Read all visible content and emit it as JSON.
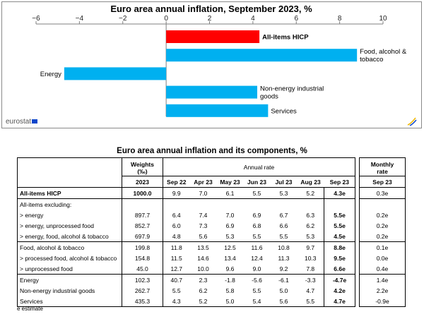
{
  "chart_data": {
    "type": "bar",
    "orientation": "horizontal",
    "title": "Euro area annual inflation, September 2023, %",
    "xlim": [
      -6,
      10
    ],
    "ticks": [
      -6,
      -4,
      -2,
      0,
      2,
      4,
      6,
      8,
      10
    ],
    "categories": [
      "All-items HICP",
      "Food, alcohol & tobacco",
      "Energy",
      "Non-energy industrial goods",
      "Services"
    ],
    "bar_labels": [
      "All-items HICP",
      "Food, alcohol &\ntobacco",
      "Energy",
      "Non-energy industrial\ngoods",
      "Services"
    ],
    "values": [
      4.3,
      8.8,
      -4.7,
      4.2,
      4.7
    ],
    "colors": [
      "#ff0000",
      "#00b0f0",
      "#00b0f0",
      "#00b0f0",
      "#00b0f0"
    ]
  },
  "source": "eurostat",
  "table": {
    "title": "Euro area annual inflation and its components, %",
    "weights_header": "Weights",
    "weights_unit": "(‰)",
    "annual_rate_header": "Annual rate",
    "monthly_header": "Monthly",
    "monthly_header2": "rate",
    "subheaders": [
      "2023",
      "Sep 22",
      "Apr 23",
      "May 23",
      "Jun 23",
      "Jul 23",
      "Aug 23",
      "Sep 23"
    ],
    "monthly_sub": "Sep 23",
    "rows": [
      {
        "label": "All-items HICP",
        "bold": true,
        "weight": "1000.0",
        "rates": [
          "9.9",
          "7.0",
          "6.1",
          "5.5",
          "5.3",
          "5.2",
          "4.3e"
        ],
        "monthly": "0.3e"
      },
      {
        "label": "All-items excluding:",
        "weight": "",
        "rates": [
          "",
          "",
          "",
          "",
          "",
          "",
          ""
        ],
        "monthly": ""
      },
      {
        "label": "> energy",
        "weight": "897.7",
        "rates": [
          "6.4",
          "7.4",
          "7.0",
          "6.9",
          "6.7",
          "6.3",
          "5.5e"
        ],
        "monthly": "0.2e"
      },
      {
        "label": "> energy, unprocessed food",
        "weight": "852.7",
        "rates": [
          "6.0",
          "7.3",
          "6.9",
          "6.8",
          "6.6",
          "6.2",
          "5.5e"
        ],
        "monthly": "0.2e"
      },
      {
        "label": "> energy, food, alcohol & tobacco",
        "weight": "697.9",
        "rates": [
          "4.8",
          "5.6",
          "5.3",
          "5.5",
          "5.5",
          "5.3",
          "4.5e"
        ],
        "monthly": "0.2e"
      },
      {
        "label": "Food, alcohol & tobacco",
        "weight": "199.8",
        "rates": [
          "11.8",
          "13.5",
          "12.5",
          "11.6",
          "10.8",
          "9.7",
          "8.8e"
        ],
        "monthly": "0.1e"
      },
      {
        "label": "> processed food, alcohol & tobacco",
        "weight": "154.8",
        "rates": [
          "11.5",
          "14.6",
          "13.4",
          "12.4",
          "11.3",
          "10.3",
          "9.5e"
        ],
        "monthly": "0.0e"
      },
      {
        "label": "> unprocessed food",
        "weight": "45.0",
        "rates": [
          "12.7",
          "10.0",
          "9.6",
          "9.0",
          "9.2",
          "7.8",
          "6.6e"
        ],
        "monthly": "0.4e"
      },
      {
        "label": "Energy",
        "weight": "102.3",
        "rates": [
          "40.7",
          "2.3",
          "-1.8",
          "-5.6",
          "-6.1",
          "-3.3",
          "-4.7e"
        ],
        "monthly": "1.4e"
      },
      {
        "label": "Non-energy industrial goods",
        "weight": "262.7",
        "rates": [
          "5.5",
          "6.2",
          "5.8",
          "5.5",
          "5.0",
          "4.7",
          "4.2e"
        ],
        "monthly": "2.2e"
      },
      {
        "label": "Services",
        "weight": "435.3",
        "rates": [
          "4.3",
          "5.2",
          "5.0",
          "5.4",
          "5.6",
          "5.5",
          "4.7e"
        ],
        "monthly": "-0.9e"
      }
    ]
  },
  "footnote": "e estimate"
}
